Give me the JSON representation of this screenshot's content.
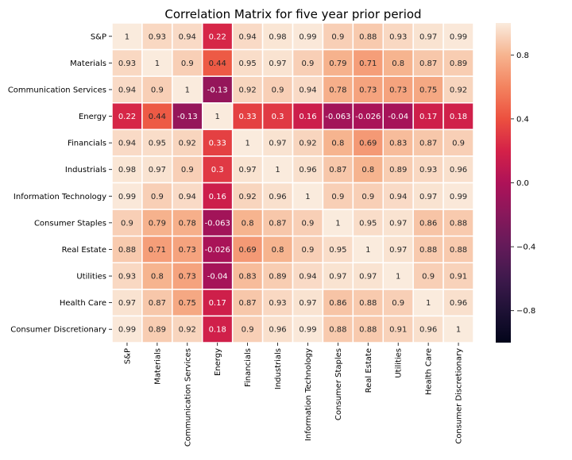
{
  "chart_data": {
    "type": "heatmap",
    "title": "Correlation Matrix for five year prior period",
    "xlabel": "",
    "ylabel": "",
    "categories": [
      "S&P",
      "Materials",
      "Communication Services",
      "Energy",
      "Financials",
      "Industrials",
      "Information Technology",
      "Consumer Staples",
      "Real Estate",
      "Utilities",
      "Health Care",
      "Consumer Discretionary"
    ],
    "values": [
      [
        1,
        0.93,
        0.94,
        0.22,
        0.94,
        0.98,
        0.99,
        0.9,
        0.88,
        0.93,
        0.97,
        0.99
      ],
      [
        0.93,
        1,
        0.9,
        0.44,
        0.95,
        0.97,
        0.9,
        0.79,
        0.71,
        0.8,
        0.87,
        0.89
      ],
      [
        0.94,
        0.9,
        1,
        -0.13,
        0.92,
        0.9,
        0.94,
        0.78,
        0.73,
        0.73,
        0.75,
        0.92
      ],
      [
        0.22,
        0.44,
        -0.13,
        1,
        0.33,
        0.3,
        0.16,
        -0.063,
        -0.026,
        -0.04,
        0.17,
        0.18
      ],
      [
        0.94,
        0.95,
        0.92,
        0.33,
        1,
        0.97,
        0.92,
        0.8,
        0.69,
        0.83,
        0.87,
        0.9
      ],
      [
        0.98,
        0.97,
        0.9,
        0.3,
        0.97,
        1,
        0.96,
        0.87,
        0.8,
        0.89,
        0.93,
        0.96
      ],
      [
        0.99,
        0.9,
        0.94,
        0.16,
        0.92,
        0.96,
        1,
        0.9,
        0.9,
        0.94,
        0.97,
        0.99
      ],
      [
        0.9,
        0.79,
        0.78,
        -0.063,
        0.8,
        0.87,
        0.9,
        1,
        0.95,
        0.97,
        0.86,
        0.88
      ],
      [
        0.88,
        0.71,
        0.73,
        -0.026,
        0.69,
        0.8,
        0.9,
        0.95,
        1,
        0.97,
        0.88,
        0.88
      ],
      [
        0.93,
        0.8,
        0.73,
        -0.04,
        0.83,
        0.89,
        0.94,
        0.97,
        0.97,
        1,
        0.9,
        0.91
      ],
      [
        0.97,
        0.87,
        0.75,
        0.17,
        0.87,
        0.93,
        0.97,
        0.86,
        0.88,
        0.9,
        1,
        0.96
      ],
      [
        0.99,
        0.89,
        0.92,
        0.18,
        0.9,
        0.96,
        0.99,
        0.88,
        0.88,
        0.91,
        0.96,
        1
      ]
    ],
    "color_range": [
      -1,
      1
    ],
    "colorbar_ticks": [
      0.8,
      0.4,
      0.0,
      -0.4,
      -0.8
    ],
    "colorbar_tick_labels": [
      "0.8",
      "0.4",
      "0.0",
      "−0.4",
      "−0.8"
    ],
    "colormap": "rocket",
    "grid": false,
    "legend": "colorbar-right"
  }
}
